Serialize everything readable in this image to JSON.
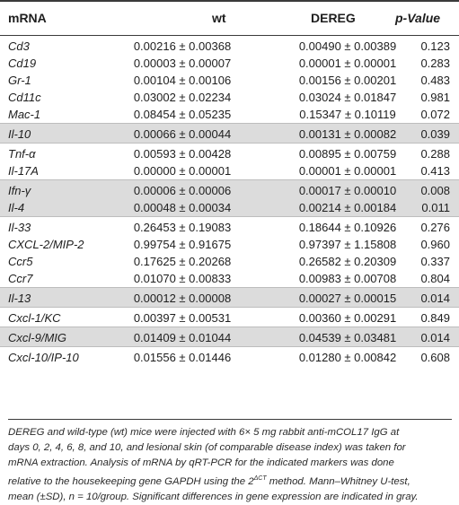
{
  "header": {
    "mrna": "mRNA",
    "wt": "wt",
    "dereg": "DEREG",
    "pvalue": "p-Value"
  },
  "groups": [
    {
      "gray": false,
      "rows": [
        {
          "mrna": "Cd3",
          "wt": "0.00216 ± 0.00368",
          "dereg": "0.00490 ± 0.00389",
          "p": "0.123"
        },
        {
          "mrna": "Cd19",
          "wt": "0.00003 ± 0.00007",
          "dereg": "0.00001 ± 0.00001",
          "p": "0.283"
        },
        {
          "mrna": "Gr-1",
          "wt": "0.00104 ± 0.00106",
          "dereg": "0.00156 ± 0.00201",
          "p": "0.483"
        },
        {
          "mrna": "Cd11c",
          "wt": "0.03002 ± 0.02234",
          "dereg": "0.03024 ± 0.01847",
          "p": "0.981"
        },
        {
          "mrna": "Mac-1",
          "wt": "0.08454 ± 0.05235",
          "dereg": "0.15347 ± 0.10119",
          "p": "0.072"
        }
      ]
    },
    {
      "gray": true,
      "rows": [
        {
          "mrna": "Il-10",
          "wt": "0.00066 ± 0.00044",
          "dereg": "0.00131 ± 0.00082",
          "p": "0.039"
        }
      ]
    },
    {
      "gray": false,
      "rows": [
        {
          "mrna": "Tnf-α",
          "wt": "0.00593 ± 0.00428",
          "dereg": "0.00895 ± 0.00759",
          "p": "0.288"
        },
        {
          "mrna": "Il-17A",
          "wt": "0.00000 ± 0.00001",
          "dereg": "0.00001 ± 0.00001",
          "p": "0.413"
        }
      ]
    },
    {
      "gray": true,
      "rows": [
        {
          "mrna": "Ifn-γ",
          "wt": "0.00006 ± 0.00006",
          "dereg": "0.00017 ± 0.00010",
          "p": "0.008"
        },
        {
          "mrna": "Il-4",
          "wt": "0.00048 ± 0.00034",
          "dereg": "0.00214 ± 0.00184",
          "p": "0.011"
        }
      ]
    },
    {
      "gray": false,
      "rows": [
        {
          "mrna": "Il-33",
          "wt": "0.26453 ± 0.19083",
          "dereg": "0.18644 ± 0.10926",
          "p": "0.276"
        },
        {
          "mrna": "CXCL-2/MIP-2",
          "wt": "0.99754 ± 0.91675",
          "dereg": "0.97397 ± 1.15808",
          "p": "0.960"
        },
        {
          "mrna": "Ccr5",
          "wt": "0.17625 ± 0.20268",
          "dereg": "0.26582 ± 0.20309",
          "p": "0.337"
        },
        {
          "mrna": "Ccr7",
          "wt": "0.01070 ± 0.00833",
          "dereg": "0.00983 ± 0.00708",
          "p": "0.804"
        }
      ]
    },
    {
      "gray": true,
      "rows": [
        {
          "mrna": "Il-13",
          "wt": "0.00012 ± 0.00008",
          "dereg": "0.00027 ± 0.00015",
          "p": "0.014"
        }
      ]
    },
    {
      "gray": false,
      "rows": [
        {
          "mrna": "Cxcl-1/KC",
          "wt": "0.00397 ± 0.00531",
          "dereg": "0.00360 ± 0.00291",
          "p": "0.849"
        }
      ]
    },
    {
      "gray": true,
      "rows": [
        {
          "mrna": "Cxcl-9/MIG",
          "wt": "0.01409 ± 0.01044",
          "dereg": "0.04539 ± 0.03481",
          "p": "0.014"
        }
      ]
    },
    {
      "gray": false,
      "rows": [
        {
          "mrna": "Cxcl-10/IP-10",
          "wt": "0.01556 ± 0.01446",
          "dereg": "0.01280 ± 0.00842",
          "p": "0.608"
        }
      ]
    }
  ],
  "footnote": {
    "line1": "DEREG and wild-type (wt) mice were injected with 6× 5 mg rabbit anti-mCOL17 IgG at",
    "line2": "days 0, 2, 4, 6, 8, and 10, and lesional skin (of comparable disease index) was taken for",
    "line3": "mRNA extraction. Analysis of mRNA by qRT-PCR for the indicated markers was done",
    "line4_pre": "relative to the housekeeping gene GAPDH using the 2",
    "line4_sup": "ΔCT",
    "line4_post": " method. Mann–Whitney U-test,",
    "line5": "mean (±SD), n = 10/group. Significant differences in gene expression are indicated in gray."
  },
  "colors": {
    "highlight": "#dcdcdc",
    "rule": "#3a3a3a"
  }
}
